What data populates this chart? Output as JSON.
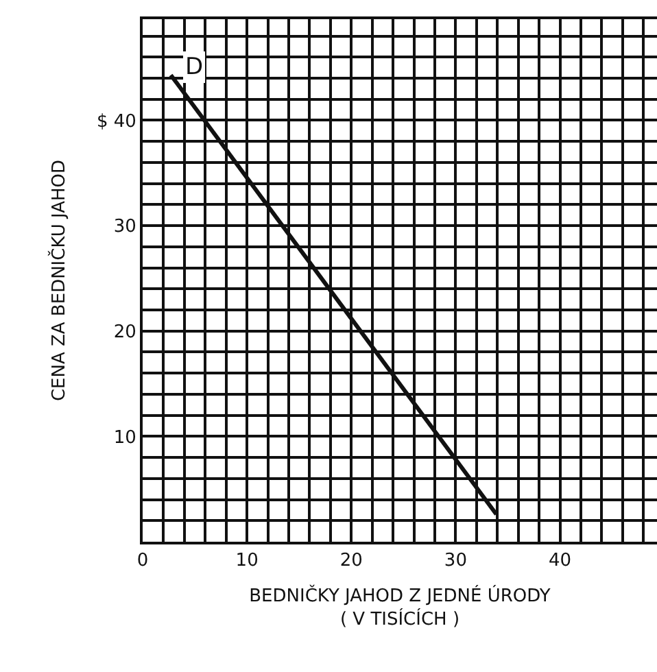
{
  "chart_data": {
    "type": "line",
    "xlabel": "BEDNIČKY JAHOD Z JEDNÉ ÚRODY\n( V TISÍCÍCH )",
    "ylabel": "CENA ZA BEDNIČKU JAHOD",
    "x": [
      2.7,
      33.9
    ],
    "series": [
      {
        "name": "D",
        "color": "#111111",
        "values": [
          44.3,
          2.6
        ]
      }
    ],
    "xlim": [
      0,
      49.3
    ],
    "ylim": [
      0,
      49.6
    ],
    "xticks": [
      0,
      {
        "value": 2,
        "label": null
      },
      {
        "value": 4,
        "label": null
      },
      {
        "value": 6,
        "label": null
      },
      {
        "value": 8,
        "label": null
      },
      10,
      {
        "value": 12,
        "label": null
      },
      {
        "value": 14,
        "label": null
      },
      {
        "value": 16,
        "label": null
      },
      {
        "value": 18,
        "label": null
      },
      20,
      {
        "value": 22,
        "label": null
      },
      {
        "value": 24,
        "label": null
      },
      {
        "value": 26,
        "label": null
      },
      {
        "value": 28,
        "label": null
      },
      30,
      {
        "value": 32,
        "label": null
      },
      {
        "value": 34,
        "label": null
      },
      {
        "value": 36,
        "label": null
      },
      {
        "value": 38,
        "label": null
      },
      40,
      {
        "value": 42,
        "label": null
      },
      {
        "value": 44,
        "label": null
      },
      {
        "value": 46,
        "label": null
      },
      {
        "value": 48,
        "label": null
      }
    ],
    "yticks": [
      {
        "value": 2,
        "label": null
      },
      {
        "value": 4,
        "label": null
      },
      {
        "value": 6,
        "label": null
      },
      {
        "value": 8,
        "label": null
      },
      10,
      {
        "value": 12,
        "label": null
      },
      {
        "value": 14,
        "label": null
      },
      {
        "value": 16,
        "label": null
      },
      {
        "value": 18,
        "label": null
      },
      20,
      {
        "value": 22,
        "label": null
      },
      {
        "value": 24,
        "label": null
      },
      {
        "value": 26,
        "label": null
      },
      {
        "value": 28,
        "label": null
      },
      30,
      {
        "value": 32,
        "label": null
      },
      {
        "value": 34,
        "label": null
      },
      {
        "value": 36,
        "label": null
      },
      {
        "value": 38,
        "label": null
      },
      {
        "value": 40,
        "label": "$ 40"
      },
      {
        "value": 42,
        "label": null
      },
      {
        "value": 44,
        "label": null
      },
      {
        "value": 46,
        "label": null
      },
      {
        "value": 48,
        "label": null
      }
    ],
    "grid": true,
    "legend": false,
    "marker": "none",
    "line_style": "solid"
  }
}
